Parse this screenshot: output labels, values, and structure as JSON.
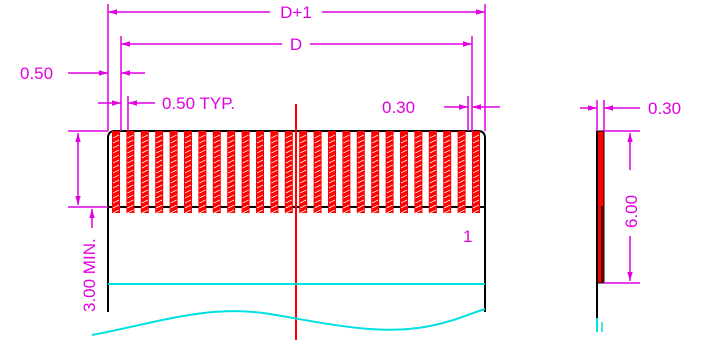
{
  "labels": {
    "overall_width": "D+1",
    "pitch_span": "D",
    "edge_offset": "0.50",
    "pitch": "0.50 TYP.",
    "contact_width": "0.30",
    "pin_one": "1",
    "min_length": "3.00 MIN.",
    "side_thickness": "0.30",
    "side_contact_length": "6.00"
  },
  "contacts": {
    "count": 26
  },
  "colors": {
    "dimension": "#e000e0",
    "contact": "#ff0000",
    "outline": "#000000",
    "reference": "#00e0e0",
    "background": "#ffffff"
  }
}
